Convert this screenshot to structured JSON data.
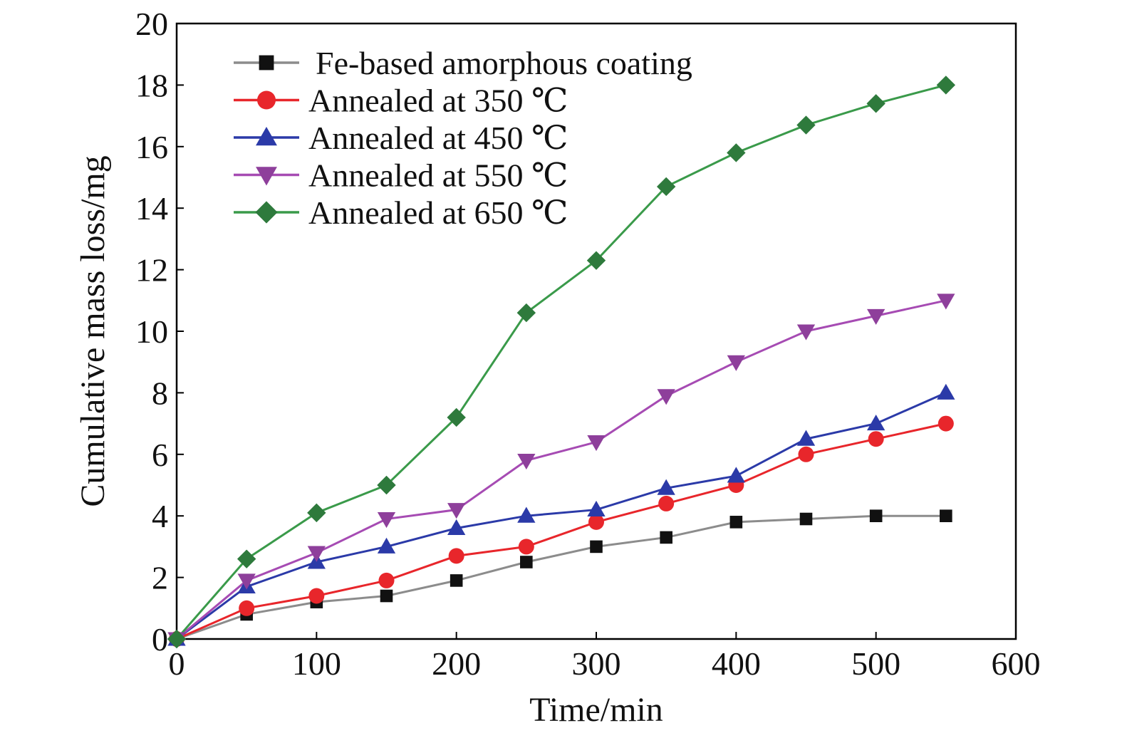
{
  "chart_data": {
    "type": "line",
    "title": "",
    "xlabel": "Time/min",
    "ylabel": "Cumulative mass loss/mg",
    "xlim": [
      0,
      600
    ],
    "ylim": [
      0,
      20
    ],
    "xticks": [
      0,
      100,
      200,
      300,
      400,
      500,
      600
    ],
    "yticks": [
      0,
      2,
      4,
      6,
      8,
      10,
      12,
      14,
      16,
      18,
      20
    ],
    "grid": false,
    "legend_position": "top-left",
    "x": [
      0,
      50,
      100,
      150,
      200,
      250,
      300,
      350,
      400,
      450,
      500,
      550
    ],
    "series": [
      {
        "name": "Fe-based amorphous coating",
        "color": "#111111",
        "line_color": "#8c8c8c",
        "marker": "square",
        "values": [
          0,
          0.8,
          1.2,
          1.4,
          1.9,
          2.5,
          3.0,
          3.3,
          3.8,
          3.9,
          4.0,
          4.0
        ]
      },
      {
        "name": "Annealed at 350 ℃",
        "color": "#e8262b",
        "line_color": "#e8262b",
        "marker": "circle",
        "values": [
          0,
          1.0,
          1.4,
          1.9,
          2.7,
          3.0,
          3.8,
          4.4,
          5.0,
          6.0,
          6.5,
          7.0
        ]
      },
      {
        "name": "Annealed at 450 ℃",
        "color": "#2b3aa8",
        "line_color": "#2b3aa8",
        "marker": "triangle-up",
        "values": [
          0,
          1.7,
          2.5,
          3.0,
          3.6,
          4.0,
          4.2,
          4.9,
          5.3,
          6.5,
          7.0,
          8.0
        ]
      },
      {
        "name": "Annealed at 550 ℃",
        "color": "#8e3f9b",
        "line_color": "#a64bb3",
        "marker": "triangle-down",
        "values": [
          0,
          1.9,
          2.8,
          3.9,
          4.2,
          5.8,
          6.4,
          7.9,
          9.0,
          10.0,
          10.5,
          11.0
        ]
      },
      {
        "name": "Annealed at 650 ℃",
        "color": "#2e7a3c",
        "line_color": "#3a9a4a",
        "marker": "diamond",
        "values": [
          0,
          2.6,
          4.1,
          5.0,
          7.2,
          10.6,
          12.3,
          14.7,
          15.8,
          16.7,
          17.4,
          18.0
        ]
      }
    ]
  }
}
